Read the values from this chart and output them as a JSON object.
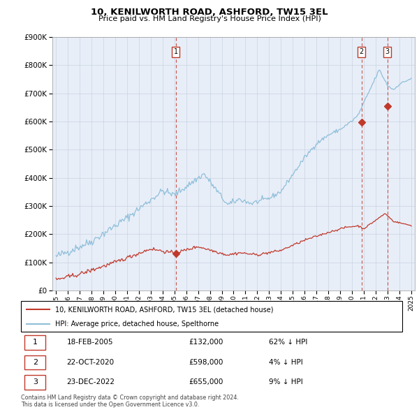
{
  "title": "10, KENILWORTH ROAD, ASHFORD, TW15 3EL",
  "subtitle": "Price paid vs. HM Land Registry's House Price Index (HPI)",
  "ytick_values": [
    0,
    100000,
    200000,
    300000,
    400000,
    500000,
    600000,
    700000,
    800000,
    900000
  ],
  "ylim": [
    0,
    900000
  ],
  "xlim_start": 1994.7,
  "xlim_end": 2025.3,
  "transactions": [
    {
      "label": "1",
      "date_num": 2005.12,
      "price": 132000,
      "text": "18-FEB-2005",
      "price_str": "£132,000",
      "pct": "62% ↓ HPI"
    },
    {
      "label": "2",
      "date_num": 2020.81,
      "price": 598000,
      "text": "22-OCT-2020",
      "price_str": "£598,000",
      "pct": "4% ↓ HPI"
    },
    {
      "label": "3",
      "date_num": 2022.98,
      "price": 655000,
      "text": "23-DEC-2022",
      "price_str": "£655,000",
      "pct": "9% ↓ HPI"
    }
  ],
  "legend_line1": "10, KENILWORTH ROAD, ASHFORD, TW15 3EL (detached house)",
  "legend_line2": "HPI: Average price, detached house, Spelthorne",
  "footnote1": "Contains HM Land Registry data © Crown copyright and database right 2024.",
  "footnote2": "This data is licensed under the Open Government Licence v3.0.",
  "hpi_color": "#8fbfda",
  "price_color": "#c0392b",
  "dashed_line_color": "#c0392b",
  "grid_color": "#c8d4e0",
  "background_color": "#ffffff",
  "plot_bg_color": "#e8eef8"
}
